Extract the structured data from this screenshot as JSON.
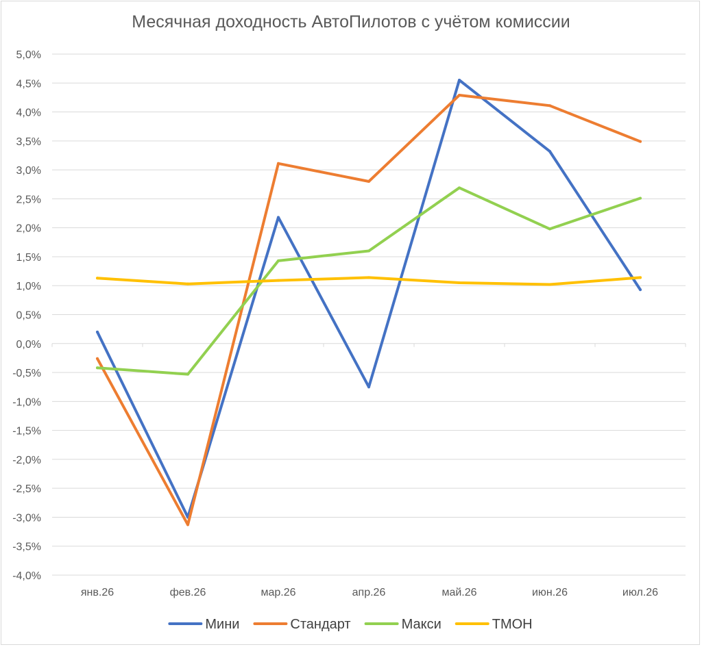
{
  "chart_data": {
    "type": "line",
    "title": "Месячная доходность АвтоПилотов с учётом комиссии",
    "categories": [
      "янв.26",
      "фев.26",
      "мар.26",
      "апр.26",
      "май.26",
      "июн.26",
      "июл.26"
    ],
    "ylim": [
      -4.0,
      5.0
    ],
    "y_step": 0.5,
    "y_tick_labels": [
      "5,0%",
      "4,5%",
      "4,0%",
      "3,5%",
      "3,0%",
      "2,5%",
      "2,0%",
      "1,5%",
      "1,0%",
      "0,5%",
      "0,0%",
      "-0,5%",
      "-1,0%",
      "-1,5%",
      "-2,0%",
      "-2,5%",
      "-3,0%",
      "-3,5%",
      "-4,0%"
    ],
    "grid": true,
    "legend_position": "bottom",
    "series": [
      {
        "name": "Мини",
        "color": "#4472c4",
        "values": [
          0.2,
          -3.0,
          2.18,
          -0.75,
          4.55,
          3.32,
          0.93
        ]
      },
      {
        "name": "Стандарт",
        "color": "#ed7d31",
        "values": [
          -0.26,
          -3.13,
          3.11,
          2.8,
          4.29,
          4.11,
          3.49
        ]
      },
      {
        "name": "Макси",
        "color": "#92d050",
        "values": [
          -0.42,
          -0.53,
          1.43,
          1.6,
          2.69,
          1.98,
          2.51
        ]
      },
      {
        "name": "ТМОН",
        "color": "#ffc000",
        "values": [
          1.13,
          1.03,
          1.09,
          1.14,
          1.05,
          1.02,
          1.14
        ]
      }
    ]
  }
}
